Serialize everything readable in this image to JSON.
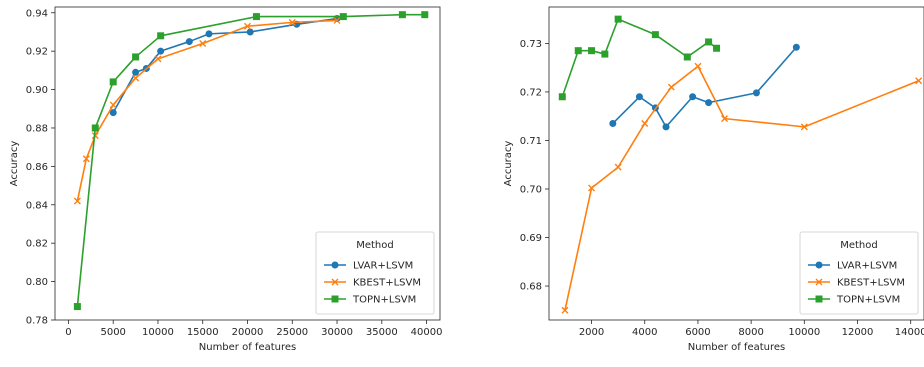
{
  "chart_data": [
    {
      "type": "line",
      "title": "",
      "xlabel": "Number of features",
      "ylabel": "Accuracy",
      "xlim": [
        -1500,
        41500
      ],
      "ylim": [
        0.78,
        0.943
      ],
      "xticks": [
        0,
        5000,
        10000,
        15000,
        20000,
        25000,
        30000,
        35000,
        40000
      ],
      "yticks": [
        0.78,
        0.8,
        0.82,
        0.84,
        0.86,
        0.88,
        0.9,
        0.92,
        0.94
      ],
      "ytick_decimals": 2,
      "legend": {
        "title": "Method",
        "placement": "lower-right"
      },
      "series": [
        {
          "name": "LVAR+LSVM",
          "color": "#1f77b4",
          "marker": "circle",
          "x": [
            5000,
            7500,
            8700,
            10300,
            13500,
            15700,
            20300,
            25500,
            30000
          ],
          "y": [
            0.888,
            0.909,
            0.911,
            0.92,
            0.925,
            0.929,
            0.93,
            0.934,
            0.937
          ]
        },
        {
          "name": "KBEST+LSVM",
          "color": "#ff7f0e",
          "marker": "x",
          "x": [
            1000,
            2000,
            3000,
            5000,
            7500,
            10000,
            15000,
            20000,
            25000,
            30000
          ],
          "y": [
            0.842,
            0.864,
            0.876,
            0.892,
            0.906,
            0.916,
            0.924,
            0.933,
            0.935,
            0.936
          ]
        },
        {
          "name": "TOPN+LSVM",
          "color": "#2ca02c",
          "marker": "square",
          "x": [
            1000,
            3000,
            5000,
            7500,
            10300,
            21000,
            30700,
            37300,
            39800
          ],
          "y": [
            0.787,
            0.88,
            0.904,
            0.917,
            0.928,
            0.938,
            0.938,
            0.939,
            0.939
          ]
        }
      ]
    },
    {
      "type": "line",
      "title": "",
      "xlabel": "Number of features",
      "ylabel": "Accuracy",
      "xlim": [
        400,
        14500
      ],
      "ylim": [
        0.673,
        0.7375
      ],
      "xticks": [
        2000,
        4000,
        6000,
        8000,
        10000,
        12000,
        14000
      ],
      "yticks": [
        0.68,
        0.69,
        0.7,
        0.71,
        0.72,
        0.73
      ],
      "ytick_decimals": 2,
      "legend": {
        "title": "Method",
        "placement": "lower-right"
      },
      "series": [
        {
          "name": "LVAR+LSVM",
          "color": "#1f77b4",
          "marker": "circle",
          "x": [
            2800,
            3800,
            4400,
            4800,
            5800,
            6400,
            8200,
            9700
          ],
          "y": [
            0.7135,
            0.719,
            0.7167,
            0.7128,
            0.719,
            0.7178,
            0.7198,
            0.7292
          ]
        },
        {
          "name": "KBEST+LSVM",
          "color": "#ff7f0e",
          "marker": "x",
          "x": [
            1000,
            2000,
            3000,
            4000,
            5000,
            6000,
            7000,
            10000,
            14300
          ],
          "y": [
            0.675,
            0.7002,
            0.7045,
            0.7135,
            0.721,
            0.7253,
            0.7145,
            0.7128,
            0.7223
          ]
        },
        {
          "name": "TOPN+LSVM",
          "color": "#2ca02c",
          "marker": "square",
          "x": [
            900,
            1500,
            2000,
            2500,
            3000,
            4400,
            5600,
            6400,
            6700
          ],
          "y": [
            0.719,
            0.7285,
            0.7285,
            0.7278,
            0.735,
            0.7318,
            0.7272,
            0.7303,
            0.729
          ]
        }
      ]
    }
  ]
}
